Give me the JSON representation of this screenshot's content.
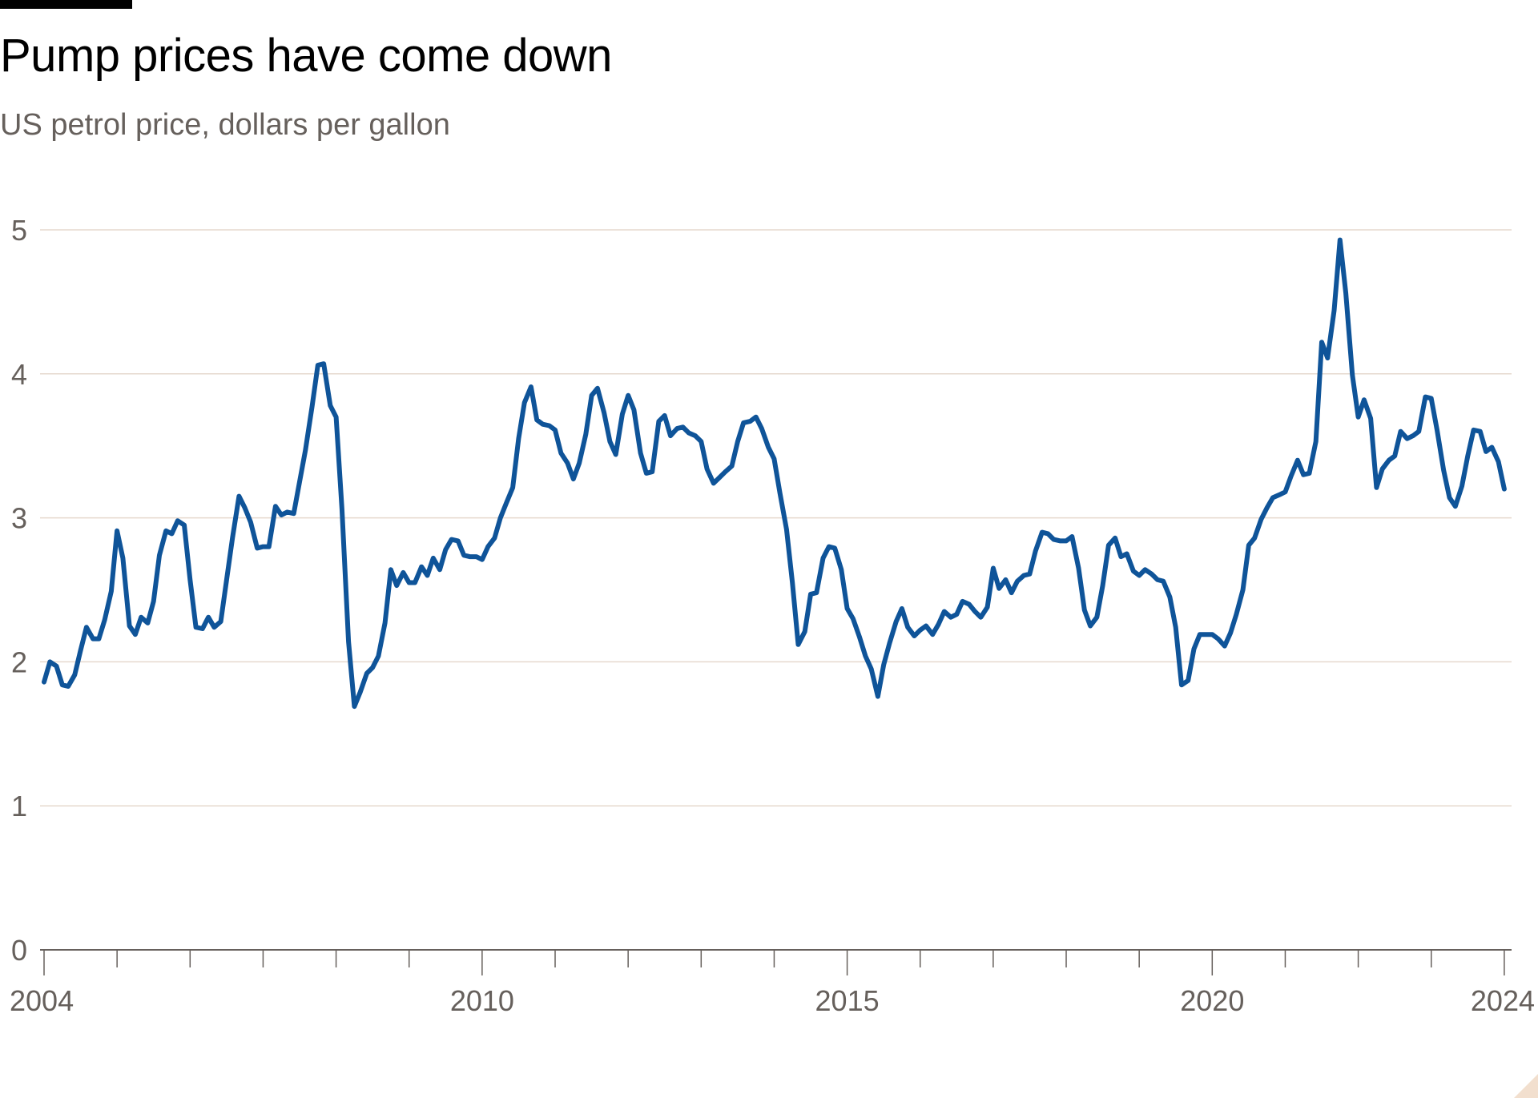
{
  "title": "Pump prices have come down",
  "subtitle": "US petrol price, dollars per gallon",
  "colors": {
    "line": "#0f5499",
    "grid": "#e6d9ce",
    "text": "#66605c",
    "title": "#000000"
  },
  "chart_data": {
    "type": "line",
    "title": "Pump prices have come down",
    "subtitle": "US petrol price, dollars per gallon",
    "xlabel": "",
    "ylabel": "",
    "ylim": [
      0,
      5
    ],
    "xlim": [
      2004.0,
      2024.1
    ],
    "yticks": [
      "0",
      "1",
      "2",
      "3",
      "4",
      "5"
    ],
    "xtick_labels": [
      "2004",
      "2010",
      "2015",
      "2020",
      "2024"
    ],
    "grid": true,
    "legend": "none",
    "series": [
      {
        "x": [
          2004.0,
          2004.08,
          2004.17,
          2004.25,
          2004.33,
          2004.42,
          2004.5,
          2004.58,
          2004.67,
          2004.75,
          2004.83,
          2004.92,
          2005.0,
          2005.08,
          2005.17,
          2005.25,
          2005.33,
          2005.42,
          2005.5,
          2005.58,
          2005.67,
          2005.75,
          2005.83,
          2005.92,
          2006.0,
          2006.08,
          2006.17,
          2006.25,
          2006.33,
          2006.42,
          2006.5,
          2006.58,
          2006.67,
          2006.75,
          2006.83,
          2006.92,
          2007.0,
          2007.08,
          2007.17,
          2007.25,
          2007.33,
          2007.42,
          2007.5,
          2007.58,
          2007.67,
          2007.75,
          2007.83,
          2007.92,
          2008.0,
          2008.08,
          2008.17,
          2008.25,
          2008.33,
          2008.42,
          2008.5,
          2008.58,
          2008.67,
          2008.75,
          2008.83,
          2008.92,
          2009.0,
          2009.08,
          2009.17,
          2009.25,
          2009.33,
          2009.42,
          2009.5,
          2009.58,
          2009.67,
          2009.75,
          2009.83,
          2009.92,
          2010.0,
          2010.08,
          2010.17,
          2010.25,
          2010.33,
          2010.42,
          2010.5,
          2010.58,
          2010.67,
          2010.75,
          2010.83,
          2010.92,
          2011.0,
          2011.08,
          2011.17,
          2011.25,
          2011.33,
          2011.42,
          2011.5,
          2011.58,
          2011.67,
          2011.75,
          2011.83,
          2011.92,
          2012.0,
          2012.08,
          2012.17,
          2012.25,
          2012.33,
          2012.42,
          2012.5,
          2012.58,
          2012.67,
          2012.75,
          2012.83,
          2012.92,
          2013.0,
          2013.08,
          2013.17,
          2013.25,
          2013.33,
          2013.42,
          2013.5,
          2013.58,
          2013.67,
          2013.75,
          2013.83,
          2013.92,
          2014.0,
          2014.08,
          2014.17,
          2014.25,
          2014.33,
          2014.42,
          2014.5,
          2014.58,
          2014.67,
          2014.75,
          2014.83,
          2014.92,
          2015.0,
          2015.08,
          2015.17,
          2015.25,
          2015.33,
          2015.42,
          2015.5,
          2015.58,
          2015.67,
          2015.75,
          2015.83,
          2015.92,
          2016.0,
          2016.08,
          2016.17,
          2016.25,
          2016.33,
          2016.42,
          2016.5,
          2016.58,
          2016.67,
          2016.75,
          2016.83,
          2016.92,
          2017.0,
          2017.08,
          2017.17,
          2017.25,
          2017.33,
          2017.42,
          2017.5,
          2017.58,
          2017.67,
          2017.75,
          2017.83,
          2017.92,
          2018.0,
          2018.08,
          2018.17,
          2018.25,
          2018.33,
          2018.42,
          2018.5,
          2018.58,
          2018.67,
          2018.75,
          2018.83,
          2018.92,
          2019.0,
          2019.08,
          2019.17,
          2019.25,
          2019.33,
          2019.42,
          2019.5,
          2019.58,
          2019.67,
          2019.75,
          2019.83,
          2019.92,
          2020.0,
          2020.08,
          2020.17,
          2020.25,
          2020.33,
          2020.42,
          2020.5,
          2020.58,
          2020.67,
          2020.75,
          2020.83,
          2020.92,
          2021.0,
          2021.08,
          2021.17,
          2021.25,
          2021.33,
          2021.42,
          2021.5,
          2021.58,
          2021.67,
          2021.75,
          2021.83,
          2021.92,
          2022.0,
          2022.08,
          2022.17,
          2022.25,
          2022.33,
          2022.42,
          2022.5,
          2022.58,
          2022.67,
          2022.75,
          2022.83,
          2022.92,
          2023.0,
          2023.08,
          2023.17,
          2023.25,
          2023.33,
          2023.42,
          2023.5,
          2023.58,
          2023.67,
          2023.75,
          2023.83,
          2023.92,
          2024.0
        ],
        "values": [
          1.86,
          2.0,
          1.97,
          1.84,
          1.83,
          1.91,
          2.08,
          2.24,
          2.16,
          2.16,
          2.29,
          2.49,
          2.91,
          2.72,
          2.25,
          2.19,
          2.31,
          2.27,
          2.42,
          2.74,
          2.91,
          2.89,
          2.98,
          2.95,
          2.57,
          2.24,
          2.23,
          2.31,
          2.24,
          2.28,
          2.57,
          2.86,
          3.15,
          3.07,
          2.97,
          2.79,
          2.8,
          2.8,
          3.08,
          3.02,
          3.04,
          3.03,
          3.25,
          3.47,
          3.77,
          4.06,
          4.07,
          3.78,
          3.7,
          3.06,
          2.14,
          1.69,
          1.79,
          1.92,
          1.96,
          2.04,
          2.27,
          2.64,
          2.53,
          2.62,
          2.55,
          2.55,
          2.66,
          2.6,
          2.72,
          2.64,
          2.78,
          2.85,
          2.84,
          2.74,
          2.73,
          2.73,
          2.71,
          2.8,
          2.86,
          3.0,
          3.1,
          3.21,
          3.55,
          3.8,
          3.91,
          3.68,
          3.65,
          3.64,
          3.61,
          3.45,
          3.38,
          3.27,
          3.38,
          3.58,
          3.85,
          3.9,
          3.73,
          3.53,
          3.44,
          3.72,
          3.85,
          3.75,
          3.45,
          3.31,
          3.32,
          3.67,
          3.71,
          3.57,
          3.62,
          3.63,
          3.59,
          3.57,
          3.53,
          3.34,
          3.24,
          3.28,
          3.32,
          3.36,
          3.53,
          3.66,
          3.67,
          3.7,
          3.62,
          3.49,
          3.41,
          3.17,
          2.92,
          2.55,
          2.12,
          2.21,
          2.47,
          2.48,
          2.72,
          2.8,
          2.79,
          2.64,
          2.37,
          2.3,
          2.17,
          2.04,
          1.95,
          1.76,
          1.98,
          2.13,
          2.28,
          2.37,
          2.24,
          2.18,
          2.22,
          2.25,
          2.19,
          2.26,
          2.35,
          2.31,
          2.33,
          2.42,
          2.4,
          2.35,
          2.31,
          2.38,
          2.65,
          2.51,
          2.57,
          2.48,
          2.56,
          2.6,
          2.61,
          2.77,
          2.9,
          2.89,
          2.85,
          2.84,
          2.84,
          2.87,
          2.65,
          2.36,
          2.25,
          2.31,
          2.53,
          2.81,
          2.86,
          2.73,
          2.75,
          2.63,
          2.6,
          2.64,
          2.61,
          2.57,
          2.56,
          2.45,
          2.24,
          1.84,
          1.87,
          2.09,
          2.19,
          2.19,
          2.19,
          2.16,
          2.11,
          2.2,
          2.33,
          2.5,
          2.81,
          2.86,
          2.99,
          3.07,
          3.14,
          3.16,
          3.18,
          3.29,
          3.4,
          3.3,
          3.31,
          3.53,
          4.22,
          4.11,
          4.44,
          4.93,
          4.56,
          3.99,
          3.7,
          3.82,
          3.69,
          3.21,
          3.34,
          3.4,
          3.43,
          3.6,
          3.55,
          3.57,
          3.6,
          3.84,
          3.83,
          3.61,
          3.33,
          3.14,
          3.08,
          3.22,
          3.43,
          3.61,
          3.6,
          3.46,
          3.49,
          3.39,
          3.2
        ]
      }
    ]
  }
}
